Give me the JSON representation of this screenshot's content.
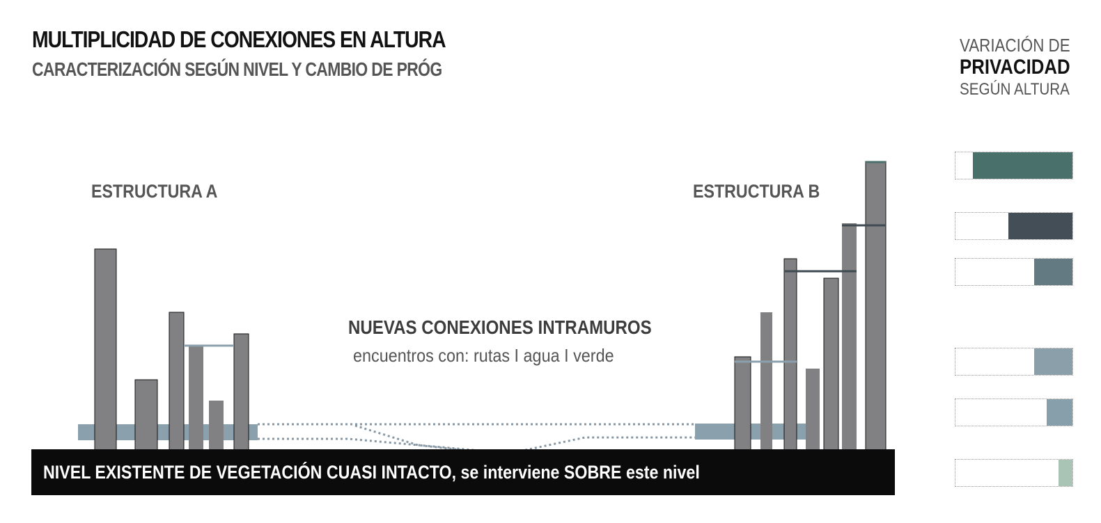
{
  "header": {
    "title": "MULTIPLICIDAD DE CONEXIONES EN ALTURA",
    "subtitle": "CARACTERIZACIÓN SEGÚN NIVEL Y CAMBIO DE PRÓG"
  },
  "structures": {
    "a_label": "ESTRUCTURA A",
    "b_label": "ESTRUCTURA B"
  },
  "center": {
    "title": "NUEVAS CONEXIONES INTRAMUROS",
    "subtitle": "encuentros con: rutas I agua I verde"
  },
  "ground": {
    "text": "NIVEL EXISTENTE DE VEGETACIÓN CUASI INTACTO, se interviene SOBRE este nivel"
  },
  "legend": {
    "line1": "VARIACIÓN DE",
    "line2": "PRIVACIDAD",
    "line3": "SEGÚN ALTURA",
    "items": [
      {
        "color": "#4a706c",
        "fill": 0.85
      },
      {
        "color": "#434e56",
        "fill": 0.55
      },
      {
        "color": "#647a82",
        "fill": 0.33
      },
      {
        "color": "#8a9faa",
        "fill": 0.33
      },
      {
        "color": "#879faa",
        "fill": 0.22
      },
      {
        "color": "#a9c4b4",
        "fill": 0.12
      }
    ]
  },
  "colors": {
    "tower": "#818183",
    "tower_stroke": "#111111",
    "connection": "#8ba0ad",
    "path": "#8797a3",
    "dark_link": "#3e4a52"
  }
}
